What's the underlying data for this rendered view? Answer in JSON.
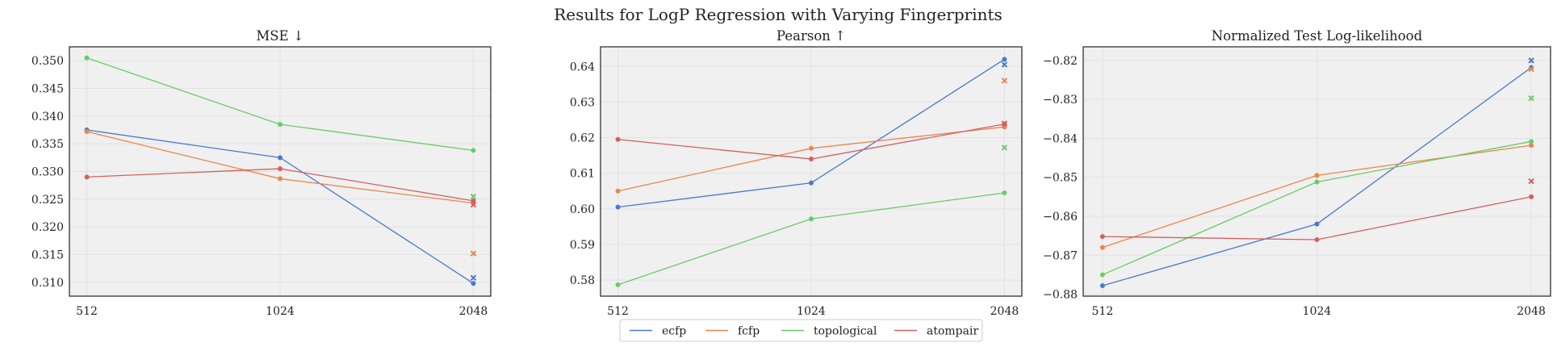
{
  "suptitle": "Results for LogP Regression with Varying Fingerprints",
  "legend": {
    "placement": "bottom-center",
    "entries": [
      {
        "name": "ecfp",
        "color": "#4878d0"
      },
      {
        "name": "fcfp",
        "color": "#ee854a"
      },
      {
        "name": "topological",
        "color": "#6acc64"
      },
      {
        "name": "atompair",
        "color": "#d65f5f"
      }
    ]
  },
  "chart_data": [
    {
      "type": "line",
      "title": "MSE  ↓",
      "xlabel": "",
      "ylabel": "",
      "x": [
        512,
        1024,
        2048
      ],
      "xticks": [
        "512",
        "1024",
        "2048"
      ],
      "ylim": [
        0.3075,
        0.3525
      ],
      "yticks": [
        "0.310",
        "0.315",
        "0.320",
        "0.325",
        "0.330",
        "0.335",
        "0.340",
        "0.345",
        "0.350"
      ],
      "grid": true,
      "series": [
        {
          "name": "ecfp",
          "values": [
            0.3375,
            0.3325,
            0.3098
          ],
          "extra_marker": 0.3108
        },
        {
          "name": "fcfp",
          "values": [
            0.3372,
            0.3287,
            0.3243
          ],
          "extra_marker": 0.3152
        },
        {
          "name": "topological",
          "values": [
            0.3505,
            0.3385,
            0.3338
          ],
          "extra_marker": 0.3255
        },
        {
          "name": "atompair",
          "values": [
            0.329,
            0.3305,
            0.3247
          ],
          "extra_marker": 0.324
        }
      ]
    },
    {
      "type": "line",
      "title": "Pearson  ↑",
      "xlabel": "",
      "ylabel": "",
      "x": [
        512,
        1024,
        2048
      ],
      "xticks": [
        "512",
        "1024",
        "2048"
      ],
      "ylim": [
        0.5755,
        0.6455
      ],
      "yticks": [
        "0.58",
        "0.59",
        "0.60",
        "0.61",
        "0.62",
        "0.63",
        "0.64"
      ],
      "grid": true,
      "series": [
        {
          "name": "ecfp",
          "values": [
            0.6005,
            0.6073,
            0.642
          ],
          "extra_marker": 0.6405
        },
        {
          "name": "fcfp",
          "values": [
            0.605,
            0.617,
            0.623
          ],
          "extra_marker": 0.636
        },
        {
          "name": "topological",
          "values": [
            0.5787,
            0.5972,
            0.6045
          ],
          "extra_marker": 0.6172
        },
        {
          "name": "atompair",
          "values": [
            0.6195,
            0.614,
            0.6238
          ],
          "extra_marker": 0.624
        }
      ]
    },
    {
      "type": "line",
      "title": "Normalized Test Log-likelihood",
      "xlabel": "",
      "ylabel": "",
      "x": [
        512,
        1024,
        2048
      ],
      "xticks": [
        "512",
        "1024",
        "2048"
      ],
      "ylim": [
        -0.8805,
        -0.8165
      ],
      "yticks": [
        "−0.88",
        "−0.87",
        "−0.86",
        "−0.85",
        "−0.84",
        "−0.83",
        "−0.82"
      ],
      "grid": true,
      "series": [
        {
          "name": "ecfp",
          "values": [
            -0.8778,
            -0.862,
            -0.8218
          ],
          "extra_marker": -0.82
        },
        {
          "name": "fcfp",
          "values": [
            -0.868,
            -0.8495,
            -0.8418
          ],
          "extra_marker": -0.8222
        },
        {
          "name": "topological",
          "values": [
            -0.875,
            -0.8512,
            -0.8408
          ],
          "extra_marker": -0.8297
        },
        {
          "name": "atompair",
          "values": [
            -0.8652,
            -0.866,
            -0.855
          ],
          "extra_marker": -0.851
        }
      ]
    }
  ]
}
